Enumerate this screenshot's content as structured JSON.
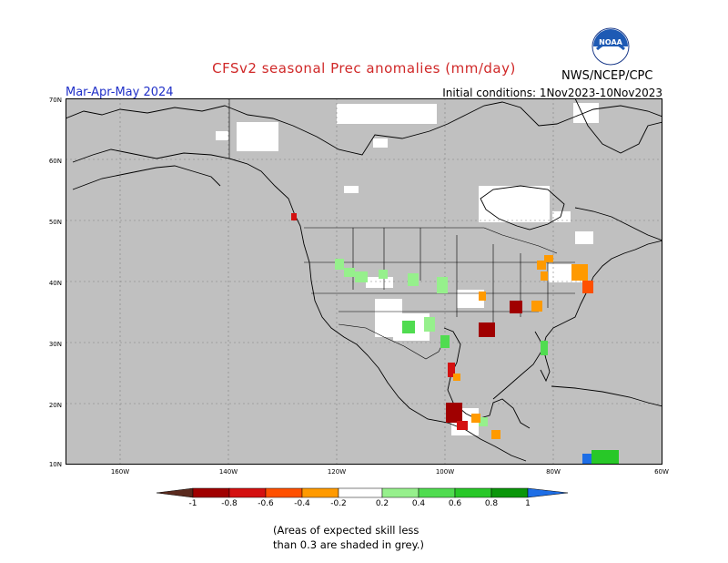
{
  "title": "CFSv2 seasonal Prec anomalies (mm/day)",
  "season": "Mar-Apr-May 2024",
  "initial_conditions": "Initial conditions: 1Nov2023-10Nov2023",
  "agency": "NWS/NCEP/CPC",
  "logo_text": "NOAA",
  "lat_labels": [
    "70N",
    "60N",
    "50N",
    "40N",
    "30N",
    "20N",
    "10N"
  ],
  "lon_labels": [
    "160W",
    "140W",
    "120W",
    "100W",
    "80W",
    "60W"
  ],
  "colorbar": {
    "labels": [
      "-1",
      "-0.8",
      "-0.6",
      "-0.4",
      "-0.2",
      "0.2",
      "0.4",
      "0.6",
      "0.8",
      "1"
    ],
    "colors": [
      "#5a2a1e",
      "#a00000",
      "#d41010",
      "#ff5000",
      "#ff9a00",
      "#ffffff",
      "#96f08c",
      "#50dc50",
      "#28c828",
      "#0a960a",
      "#1e6ee6"
    ]
  },
  "note_line1": "(Areas of expected skill less",
  "note_line2": "than 0.3 are shaded in grey.)",
  "map_colors": {
    "background": "#c0c0c0",
    "coast": "#000000",
    "no_anomaly": "#ffffff"
  }
}
